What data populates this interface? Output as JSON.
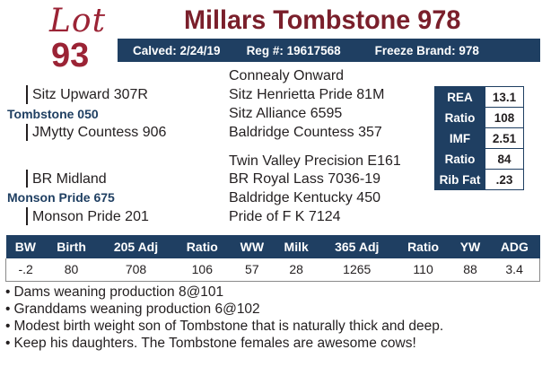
{
  "lot": {
    "word": "Lot",
    "number": "93"
  },
  "title": "Millars Tombstone 978",
  "info": {
    "calved": "Calved: 2/24/19",
    "reg": "Reg #: 19617568",
    "freeze": "Freeze Brand: 978"
  },
  "pedigree": {
    "sire_side": {
      "sire_of_sire": "Sitz Upward 307R",
      "sire": "Tombstone 050",
      "dam_of_sire": "JMytty Countess 906",
      "ggs1": "Connealy Onward",
      "ggd1": "Sitz Henrietta Pride 81M",
      "ggs2": "Sitz Alliance 6595",
      "ggd2": "Baldridge Countess 357"
    },
    "dam_side": {
      "sire_of_dam": "BR Midland",
      "dam": "Monson Pride 675",
      "dam_of_dam": "Monson Pride 201",
      "ggs3": "Twin Valley Precision E161",
      "ggd3": "BR Royal Lass 7036-19",
      "ggs4": "Baldridge Kentucky 450",
      "ggd4": "Pride of F K 7124"
    }
  },
  "epd": [
    {
      "label": "REA",
      "value": "13.1"
    },
    {
      "label": "Ratio",
      "value": "108"
    },
    {
      "label": "IMF",
      "value": "2.51"
    },
    {
      "label": "Ratio",
      "value": "84"
    },
    {
      "label": "Rib Fat",
      "value": ".23"
    }
  ],
  "performance": {
    "headers": [
      "BW",
      "Birth",
      "205 Adj",
      "Ratio",
      "WW",
      "Milk",
      "365 Adj",
      "Ratio",
      "YW",
      "ADG"
    ],
    "values": [
      "-.2",
      "80",
      "708",
      "106",
      "57",
      "28",
      "1265",
      "110",
      "88",
      "3.4"
    ]
  },
  "notes": [
    "Dams weaning production 8@101",
    "Granddams weaning production 6@102",
    "Modest birth weight son of Tombstone that is naturally thick and deep.",
    "Keep his daughters. The Tombstone females are awesome cows!"
  ],
  "colors": {
    "navy": "#1f3f62",
    "maroon": "#7a1f2b",
    "lot_red": "#9b2335"
  }
}
